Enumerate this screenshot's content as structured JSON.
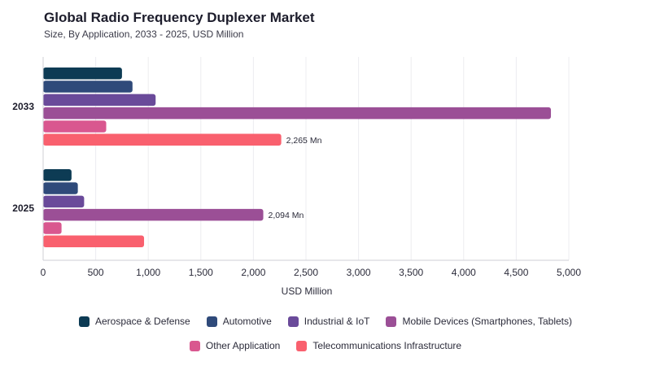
{
  "header": {
    "title": "Global Radio Frequency Duplexer Market",
    "subtitle": "Size, By Application, 2033 - 2025, USD Million"
  },
  "chart_data": {
    "type": "bar",
    "orientation": "horizontal",
    "title": "Global Radio Frequency Duplexer Market",
    "subtitle": "Size, By Application, 2033 - 2025, USD Million",
    "xlabel": "USD Million",
    "ylabel": "",
    "categories": [
      "2033",
      "2025"
    ],
    "xlim": [
      0,
      5000
    ],
    "xticks": [
      0,
      500,
      1000,
      1500,
      2000,
      2500,
      3000,
      3500,
      4000,
      4500,
      5000
    ],
    "xtick_labels": [
      "0",
      "500",
      "1,000",
      "1,500",
      "2,000",
      "2,500",
      "3,000",
      "3,500",
      "4,000",
      "4,500",
      "5,000"
    ],
    "grid": true,
    "legend_position": "bottom",
    "series": [
      {
        "name": "Aerospace & Defense",
        "color": "#0d3b54",
        "values": [
          750,
          270
        ]
      },
      {
        "name": "Automotive",
        "color": "#2f4a7a",
        "values": [
          850,
          330
        ]
      },
      {
        "name": "Industrial & IoT",
        "color": "#6a4a9a",
        "values": [
          1070,
          390
        ]
      },
      {
        "name": "Mobile Devices (Smartphones, Tablets)",
        "color": "#9b4f96",
        "values": [
          4830,
          2094
        ]
      },
      {
        "name": "Other Application",
        "color": "#d9578f",
        "values": [
          600,
          175
        ]
      },
      {
        "name": "Telecommunications Infrastructure",
        "color": "#f9606e",
        "values": [
          2265,
          960
        ]
      }
    ],
    "data_labels": [
      {
        "category": "2033",
        "series": "Telecommunications Infrastructure",
        "text": "2,265 Mn"
      },
      {
        "category": "2025",
        "series": "Mobile Devices (Smartphones, Tablets)",
        "text": "2,094 Mn"
      }
    ]
  }
}
